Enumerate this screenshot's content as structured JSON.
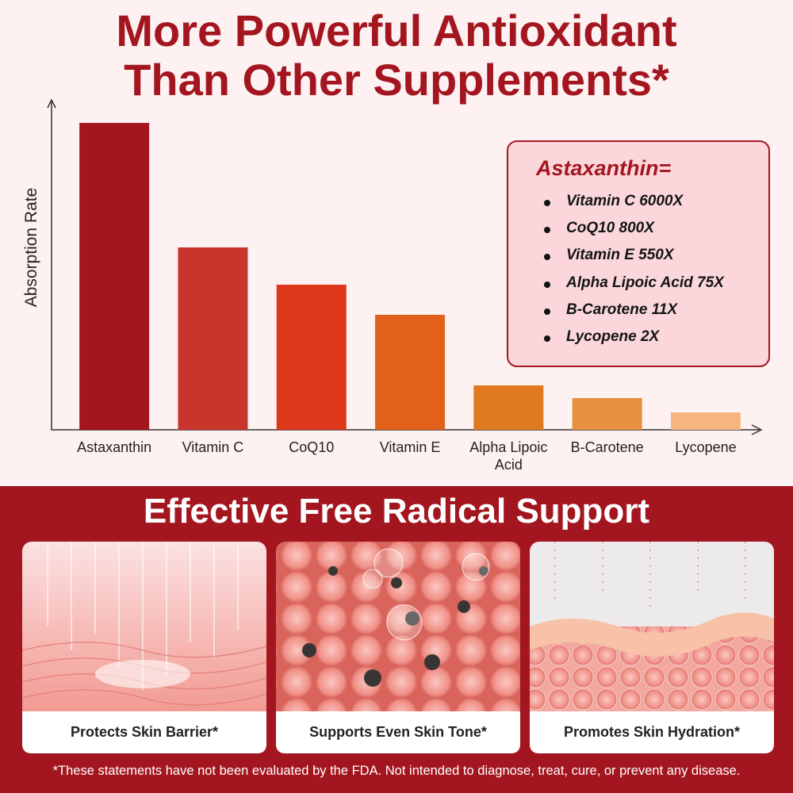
{
  "chart_data": {
    "type": "bar",
    "title": "More Powerful Antioxidant Than Other Supplements*",
    "y_label": "Absorption Rate",
    "categories": [
      "Astaxanthin",
      "Vitamin C",
      "CoQ10",
      "Vitamin E",
      "Alpha Lipoic Acid",
      "B-Carotene",
      "Lycopene"
    ],
    "values": [
      387,
      230,
      183,
      145,
      56,
      40,
      22
    ],
    "colors": [
      "#a3161f",
      "#c8352d",
      "#e0381c",
      "#e2601a",
      "#e07a20",
      "#e5913e",
      "#f6b57f"
    ],
    "ylim": [
      0,
      414
    ]
  },
  "comparison": {
    "title": "Astaxanthin=",
    "items": [
      "Vitamin C 6000X",
      "CoQ10 800X",
      "Vitamin E 550X",
      "Alpha Lipoic Acid 75X",
      "B-Carotene 11X",
      "Lycopene 2X"
    ]
  },
  "benefits": {
    "title": "Effective Free Radical Support",
    "cards": [
      "Protects Skin Barrier*",
      "Supports Even Skin Tone*",
      "Promotes Skin Hydration*"
    ]
  },
  "disclaimer": "*These statements have not been evaluated by the FDA. Not intended to diagnose, treat, cure, or prevent any disease."
}
